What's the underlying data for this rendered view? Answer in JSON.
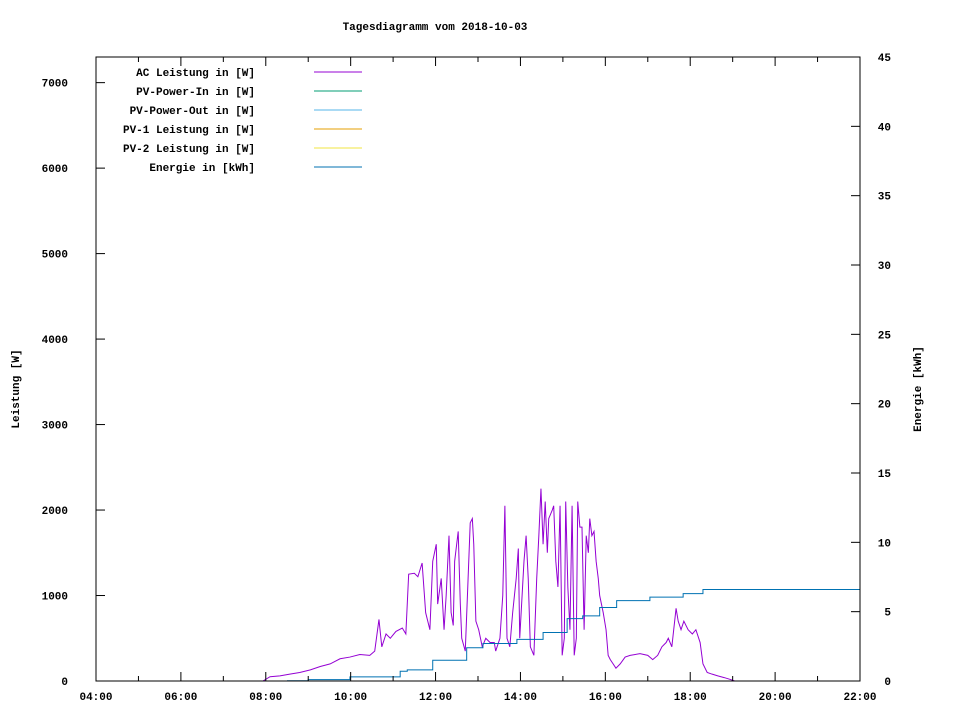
{
  "chart_data": {
    "type": "line",
    "title": "Tagesdiagramm vom 2018-10-03",
    "xlabel": "",
    "ylabel": "Leistung [W]",
    "y2label": "Energie [kWh]",
    "xlim": [
      "04:00",
      "22:00"
    ],
    "ylim": [
      0,
      7300
    ],
    "y2lim": [
      0,
      45
    ],
    "x_ticks": [
      "04:00",
      "06:00",
      "08:00",
      "10:00",
      "12:00",
      "14:00",
      "16:00",
      "18:00",
      "20:00",
      "22:00"
    ],
    "y_ticks": [
      0,
      1000,
      2000,
      3000,
      4000,
      5000,
      6000,
      7000
    ],
    "y2_ticks": [
      0,
      5,
      10,
      15,
      20,
      25,
      30,
      35,
      40,
      45
    ],
    "grid": false,
    "legend_position": "top-left",
    "series": [
      {
        "name": "AC Leistung in [W]",
        "color": "#9400d3",
        "axis": "y",
        "x": [
          "07:56",
          "08:06",
          "08:20",
          "08:34",
          "08:48",
          "09:03",
          "09:17",
          "09:31",
          "09:45",
          "09:59",
          "10:13",
          "10:27",
          "10:34",
          "10:40",
          "10:44",
          "10:50",
          "10:56",
          "11:04",
          "11:13",
          "11:18",
          "11:22",
          "11:30",
          "11:35",
          "11:41",
          "11:46",
          "11:52",
          "11:56",
          "12:01",
          "12:03",
          "12:08",
          "12:12",
          "12:15",
          "12:19",
          "12:22",
          "12:25",
          "12:27",
          "12:32",
          "12:35",
          "12:37",
          "12:42",
          "12:46",
          "12:49",
          "12:52",
          "12:54",
          "12:57",
          "13:01",
          "13:06",
          "13:11",
          "13:17",
          "13:23",
          "13:25",
          "13:31",
          "13:35",
          "13:38",
          "13:41",
          "13:45",
          "13:49",
          "13:54",
          "13:57",
          "13:59",
          "14:05",
          "14:08",
          "14:11",
          "14:14",
          "14:19",
          "14:23",
          "14:26",
          "14:29",
          "14:32",
          "14:35",
          "14:38",
          "14:40",
          "14:45",
          "14:47",
          "14:50",
          "14:53",
          "14:56",
          "14:59",
          "15:02",
          "15:04",
          "15:07",
          "15:10",
          "15:13",
          "15:16",
          "15:19",
          "15:21",
          "15:24",
          "15:27",
          "15:30",
          "15:33",
          "15:36",
          "15:38",
          "15:41",
          "15:44",
          "15:47",
          "15:50",
          "15:52",
          "15:57",
          "16:01",
          "16:04",
          "16:07",
          "16:11",
          "16:15",
          "16:21",
          "16:28",
          "16:35",
          "16:49",
          "17:00",
          "17:07",
          "17:14",
          "17:20",
          "17:26",
          "17:29",
          "17:34",
          "17:40",
          "17:43",
          "17:47",
          "17:51",
          "17:57",
          "18:03",
          "18:08",
          "18:14",
          "18:18",
          "18:24",
          "18:31",
          "18:39",
          "18:48",
          "18:56",
          "19:03"
        ],
        "y": [
          0,
          50,
          60,
          80,
          100,
          130,
          170,
          200,
          260,
          280,
          310,
          300,
          350,
          720,
          400,
          550,
          500,
          580,
          620,
          550,
          1250,
          1260,
          1220,
          1380,
          800,
          600,
          1400,
          1600,
          900,
          1200,
          600,
          1000,
          1700,
          800,
          650,
          1400,
          1750,
          900,
          500,
          350,
          1200,
          1850,
          1900,
          1600,
          700,
          600,
          400,
          500,
          450,
          450,
          350,
          500,
          1000,
          2050,
          500,
          400,
          800,
          1200,
          1550,
          500,
          1400,
          1700,
          1200,
          400,
          300,
          1200,
          1700,
          2250,
          1600,
          2100,
          1500,
          1900,
          2000,
          2050,
          1400,
          1100,
          2050,
          300,
          500,
          2100,
          1100,
          600,
          2050,
          300,
          500,
          2100,
          1800,
          1800,
          600,
          1700,
          1500,
          1900,
          1700,
          1750,
          1400,
          1200,
          1000,
          800,
          600,
          300,
          250,
          200,
          150,
          200,
          280,
          300,
          320,
          300,
          250,
          300,
          400,
          450,
          500,
          400,
          850,
          700,
          600,
          700,
          600,
          550,
          600,
          450,
          200,
          100,
          80,
          60,
          40,
          20,
          0
        ]
      },
      {
        "name": "PV-Power-In in [W]",
        "color": "#009e73",
        "axis": "y",
        "x": [],
        "y": []
      },
      {
        "name": "PV-Power-Out in [W]",
        "color": "#56b4e9",
        "axis": "y",
        "x": [],
        "y": []
      },
      {
        "name": "PV-1 Leistung in [W]",
        "color": "#e69f00",
        "axis": "y",
        "x": [],
        "y": []
      },
      {
        "name": "PV-2 Leistung in [W]",
        "color": "#f0e442",
        "axis": "y",
        "x": [],
        "y": []
      },
      {
        "name": "Energie in [kWh]",
        "color": "#0072b2",
        "axis": "y2",
        "x": [
          "08:30",
          "09:00",
          "09:59",
          "11:10",
          "11:20",
          "11:56",
          "12:44",
          "13:07",
          "13:55",
          "14:32",
          "15:06",
          "15:28",
          "15:52",
          "16:16",
          "17:03",
          "17:50",
          "18:18",
          "22:00"
        ],
        "y": [
          0.02,
          0.1,
          0.3,
          0.7,
          0.8,
          1.5,
          2.4,
          2.7,
          3.0,
          3.5,
          4.5,
          4.7,
          5.3,
          5.8,
          6.05,
          6.3,
          6.6,
          6.6
        ]
      }
    ]
  }
}
